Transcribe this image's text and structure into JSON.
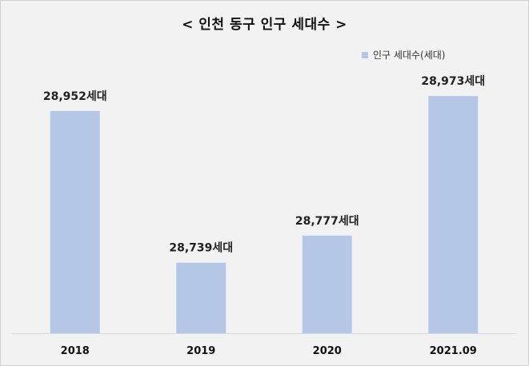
{
  "chart_data": {
    "type": "bar",
    "title": "< 인천 동구 인구 세대수 >",
    "categories": [
      "2018",
      "2019",
      "2020",
      "2021.09"
    ],
    "series": [
      {
        "name": "인구 세대수(세대)",
        "values": [
          28952,
          28739,
          28777,
          28973
        ],
        "labels": [
          "28,952세대",
          "28,739세대",
          "28,777세대",
          "28,973세대"
        ],
        "color": "#b4c7e7"
      }
    ],
    "ylim": [
      28640,
      28990
    ],
    "grid": false,
    "legend": "top-right"
  }
}
